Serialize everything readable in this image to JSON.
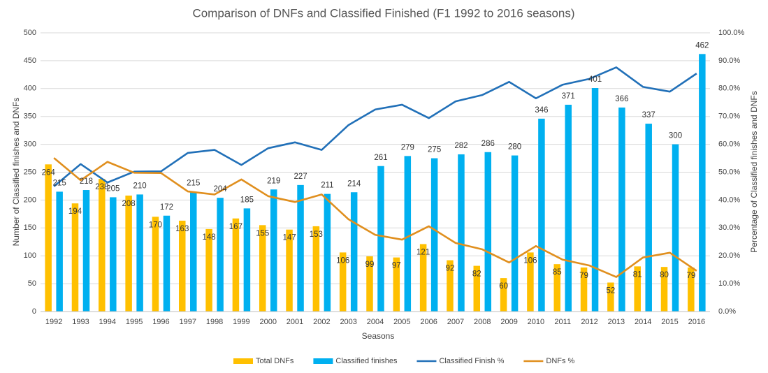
{
  "chart_data": {
    "type": "combo",
    "title": "Comparison of DNFs and Classified Finished (F1 1992 to 2016 seasons)",
    "x_label": "Seasons",
    "y_label": "Number of Classified finishes and DNFs",
    "y2_label": "Percentage of Classified finishes and DNFs",
    "categories": [
      "1992",
      "1993",
      "1994",
      "1995",
      "1996",
      "1997",
      "1998",
      "1999",
      "2000",
      "2001",
      "2002",
      "2003",
      "2004",
      "2005",
      "2006",
      "2007",
      "2008",
      "2009",
      "2010",
      "2011",
      "2012",
      "2013",
      "2014",
      "2015",
      "2016"
    ],
    "series": [
      {
        "name": "Total DNFs",
        "type": "bar",
        "color": "#FFC000",
        "values": [
          264,
          194,
          238,
          208,
          170,
          163,
          148,
          167,
          155,
          147,
          153,
          106,
          99,
          97,
          121,
          92,
          82,
          60,
          106,
          85,
          79,
          52,
          81,
          80,
          79
        ]
      },
      {
        "name": "Classified finishes",
        "type": "bar",
        "color": "#00B0F0",
        "values": [
          215,
          218,
          205,
          210,
          172,
          215,
          204,
          185,
          219,
          227,
          211,
          214,
          261,
          279,
          275,
          282,
          286,
          280,
          346,
          371,
          401,
          366,
          337,
          300,
          462
        ]
      },
      {
        "name": "Classified Finish %",
        "type": "line",
        "axis": "y2",
        "color": "#2170B8",
        "values": [
          44.9,
          52.9,
          46.3,
          50.2,
          50.3,
          56.9,
          58.0,
          52.6,
          58.6,
          60.7,
          58.0,
          66.9,
          72.5,
          74.2,
          69.4,
          75.4,
          77.7,
          82.4,
          76.5,
          81.4,
          83.5,
          87.6,
          80.6,
          78.9,
          85.4
        ]
      },
      {
        "name": "DNFs %",
        "type": "line",
        "axis": "y2",
        "color": "#E08F1E",
        "values": [
          55.1,
          47.1,
          53.7,
          49.8,
          49.7,
          43.1,
          42.0,
          47.4,
          41.4,
          39.3,
          42.0,
          33.1,
          27.5,
          25.8,
          30.6,
          24.6,
          22.3,
          17.6,
          23.5,
          18.6,
          16.5,
          12.4,
          19.4,
          21.1,
          14.6
        ]
      }
    ],
    "ylim": [
      0,
      500
    ],
    "yticks": [
      0,
      50,
      100,
      150,
      200,
      250,
      300,
      350,
      400,
      450,
      500
    ],
    "y2lim": [
      0,
      100
    ],
    "y2ticks": [
      {
        "value": 0,
        "label": "0.0%"
      },
      {
        "value": 10,
        "label": "10.0%"
      },
      {
        "value": 20,
        "label": "20.0%"
      },
      {
        "value": 30,
        "label": "30.0%"
      },
      {
        "value": 40,
        "label": "40.0%"
      },
      {
        "value": 50,
        "label": "50.0%"
      },
      {
        "value": 60,
        "label": "60.0%"
      },
      {
        "value": 70,
        "label": "70.0%"
      },
      {
        "value": 80,
        "label": "80.0%"
      },
      {
        "value": 90,
        "label": "90.0%"
      },
      {
        "value": 100,
        "label": "100.0%"
      }
    ],
    "grid": true,
    "legend": "bottom"
  }
}
